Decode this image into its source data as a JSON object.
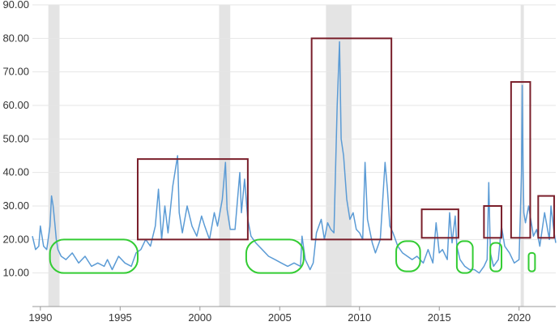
{
  "chart_data": {
    "type": "line",
    "title": "",
    "xlabel": "",
    "ylabel": "",
    "xlim": [
      1989.5,
      2022.3
    ],
    "ylim": [
      0,
      90
    ],
    "y_ticks": [
      {
        "value": 10,
        "label": "10.00"
      },
      {
        "value": 20,
        "label": "20.00"
      },
      {
        "value": 30,
        "label": "30.00"
      },
      {
        "value": 40,
        "label": "40.00"
      },
      {
        "value": 50,
        "label": "50.00"
      },
      {
        "value": 60,
        "label": "60.00"
      },
      {
        "value": 70,
        "label": "70.00"
      },
      {
        "value": 80,
        "label": "80.00"
      },
      {
        "value": 90,
        "label": "90.00"
      }
    ],
    "x_ticks": [
      {
        "value": 1990,
        "label": "1990"
      },
      {
        "value": 1995,
        "label": "1995"
      },
      {
        "value": 2000,
        "label": "2000"
      },
      {
        "value": 2005,
        "label": "2005"
      },
      {
        "value": 2010,
        "label": "2010"
      },
      {
        "value": 2015,
        "label": "2015"
      },
      {
        "value": 2020,
        "label": "2020"
      }
    ],
    "grid": true,
    "recession_bands": [
      [
        1990.5,
        1991.2
      ],
      [
        2001.2,
        2001.9
      ],
      [
        2007.9,
        2009.5
      ],
      [
        2020.1,
        2020.3
      ]
    ],
    "series": [
      {
        "color": "#5b9bd5",
        "x": [
          1989.5,
          1989.7,
          1989.9,
          1990.0,
          1990.2,
          1990.4,
          1990.6,
          1990.7,
          1990.8,
          1990.9,
          1991.0,
          1991.1,
          1991.3,
          1991.6,
          1992.0,
          1992.4,
          1992.8,
          1993.2,
          1993.6,
          1994.0,
          1994.2,
          1994.5,
          1994.9,
          1995.3,
          1995.7,
          1996.0,
          1996.3,
          1996.6,
          1996.9,
          1997.2,
          1997.4,
          1997.6,
          1997.8,
          1998.0,
          1998.3,
          1998.6,
          1998.7,
          1998.9,
          1999.2,
          1999.5,
          1999.8,
          2000.1,
          2000.3,
          2000.6,
          2000.9,
          2001.1,
          2001.4,
          2001.6,
          2001.7,
          2001.9,
          2002.2,
          2002.5,
          2002.6,
          2002.8,
          2003.0,
          2003.2,
          2003.5,
          2003.9,
          2004.3,
          2004.7,
          2005.1,
          2005.5,
          2005.9,
          2006.3,
          2006.4,
          2006.6,
          2006.9,
          2007.1,
          2007.3,
          2007.6,
          2007.8,
          2008.0,
          2008.2,
          2008.4,
          2008.6,
          2008.75,
          2008.85,
          2009.0,
          2009.2,
          2009.4,
          2009.6,
          2009.8,
          2010.0,
          2010.2,
          2010.35,
          2010.5,
          2010.8,
          2011.0,
          2011.3,
          2011.6,
          2011.75,
          2011.9,
          2012.1,
          2012.4,
          2012.7,
          2013.0,
          2013.3,
          2013.6,
          2014.0,
          2014.3,
          2014.6,
          2014.8,
          2015.0,
          2015.2,
          2015.5,
          2015.65,
          2015.8,
          2016.0,
          2016.1,
          2016.3,
          2016.6,
          2016.9,
          2017.2,
          2017.5,
          2017.8,
          2018.0,
          2018.1,
          2018.2,
          2018.4,
          2018.7,
          2018.9,
          2019.1,
          2019.4,
          2019.7,
          2020.0,
          2020.15,
          2020.2,
          2020.25,
          2020.3,
          2020.4,
          2020.6,
          2020.8,
          2020.9,
          2021.1,
          2021.3,
          2021.6,
          2021.9,
          2022.0,
          2022.2,
          2022.3
        ],
        "y": [
          21,
          17,
          18,
          24,
          18,
          17,
          24,
          33,
          30,
          25,
          20,
          17,
          15,
          14,
          16,
          13,
          15,
          12,
          13,
          12,
          14,
          11,
          15,
          13,
          12,
          16,
          17,
          20,
          18,
          24,
          35,
          20,
          30,
          22,
          36,
          45,
          28,
          22,
          30,
          24,
          21,
          27,
          24,
          20,
          28,
          24,
          32,
          43,
          29,
          23,
          23,
          40,
          28,
          38,
          26,
          21,
          19,
          17,
          15,
          14,
          13,
          12,
          13,
          12,
          21,
          14,
          11,
          13,
          22,
          26,
          20,
          25,
          23,
          22,
          60,
          79,
          50,
          45,
          32,
          26,
          28,
          23,
          22,
          20,
          43,
          26,
          19,
          16,
          20,
          43,
          35,
          24,
          22,
          18,
          16,
          15,
          14,
          15,
          13,
          17,
          13,
          25,
          16,
          17,
          14,
          28,
          19,
          27,
          18,
          14,
          12,
          11,
          11,
          10,
          12,
          14,
          37,
          16,
          12,
          14,
          24,
          18,
          16,
          13,
          14,
          40,
          66,
          42,
          28,
          25,
          30,
          24,
          21,
          23,
          18,
          28,
          20,
          30,
          22,
          19
        ]
      }
    ],
    "highlight_boxes_high": [
      {
        "x0": 1996.1,
        "x1": 2003.0,
        "y0": 20,
        "y1": 44
      },
      {
        "x0": 2007.0,
        "x1": 2012.0,
        "y0": 20,
        "y1": 80
      },
      {
        "x0": 2013.9,
        "x1": 2016.2,
        "y0": 20.5,
        "y1": 29
      },
      {
        "x0": 2017.8,
        "x1": 2018.9,
        "y0": 20.5,
        "y1": 30
      },
      {
        "x0": 2019.5,
        "x1": 2020.7,
        "y0": 20.5,
        "y1": 67
      },
      {
        "x0": 2021.2,
        "x1": 2022.2,
        "y0": 20.5,
        "y1": 33
      }
    ],
    "highlight_boxes_low": [
      {
        "x0": 1990.6,
        "x1": 1996.1,
        "y0": 10,
        "y1": 20
      },
      {
        "x0": 2002.9,
        "x1": 2006.5,
        "y0": 10,
        "y1": 20
      },
      {
        "x0": 2012.3,
        "x1": 2013.8,
        "y0": 10.5,
        "y1": 19.5
      },
      {
        "x0": 2016.1,
        "x1": 2017.1,
        "y0": 10,
        "y1": 19.5
      },
      {
        "x0": 2018.2,
        "x1": 2018.9,
        "y0": 10.5,
        "y1": 19
      },
      {
        "x0": 2020.6,
        "x1": 2021.0,
        "y0": 10.5,
        "y1": 16
      }
    ],
    "colors": {
      "line": "#5b9bd5",
      "high_box": "#7a1f2b",
      "low_box": "#33cc33",
      "band": "#e4e4e4",
      "grid": "#e6e6e6",
      "axis": "#333333"
    }
  }
}
